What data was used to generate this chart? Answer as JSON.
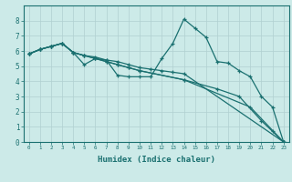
{
  "xlabel": "Humidex (Indice chaleur)",
  "ylabel": "",
  "background_color": "#cceae8",
  "line_color": "#1a7070",
  "grid_color": "#b0d0d0",
  "xlim": [
    -0.5,
    23.5
  ],
  "ylim": [
    0,
    9
  ],
  "xticks": [
    0,
    1,
    2,
    3,
    4,
    5,
    6,
    7,
    8,
    9,
    10,
    11,
    12,
    13,
    14,
    15,
    16,
    17,
    18,
    19,
    20,
    21,
    22,
    23
  ],
  "yticks": [
    0,
    1,
    2,
    3,
    4,
    5,
    6,
    7,
    8
  ],
  "lines": [
    {
      "x": [
        0,
        1,
        2,
        3,
        4,
        5,
        6,
        7,
        8,
        9,
        10,
        11,
        12,
        13,
        14,
        15,
        16,
        17,
        18,
        19,
        20,
        21,
        22,
        23
      ],
      "y": [
        5.8,
        6.1,
        6.3,
        6.5,
        5.9,
        5.1,
        5.5,
        5.4,
        4.4,
        4.3,
        4.3,
        4.3,
        5.5,
        6.5,
        8.1,
        7.5,
        6.9,
        5.3,
        5.2,
        4.7,
        4.3,
        3.0,
        2.3,
        0.0
      ]
    },
    {
      "x": [
        0,
        1,
        2,
        3,
        4,
        5,
        6,
        7,
        8,
        9,
        10,
        11,
        12,
        13,
        14,
        23
      ],
      "y": [
        5.8,
        6.1,
        6.3,
        6.5,
        5.9,
        5.7,
        5.6,
        5.4,
        5.3,
        5.1,
        4.9,
        4.8,
        4.7,
        4.6,
        4.5,
        0.0
      ]
    },
    {
      "x": [
        0,
        1,
        2,
        3,
        4,
        5,
        6,
        7,
        8,
        9,
        10,
        14,
        17,
        19,
        21,
        22,
        23
      ],
      "y": [
        5.8,
        6.1,
        6.3,
        6.5,
        5.9,
        5.7,
        5.5,
        5.3,
        5.1,
        4.9,
        4.7,
        4.1,
        3.5,
        3.0,
        1.4,
        0.7,
        0.0
      ]
    },
    {
      "x": [
        0,
        1,
        2,
        3,
        4,
        5,
        6,
        7,
        8,
        9,
        10,
        14,
        20,
        23
      ],
      "y": [
        5.8,
        6.1,
        6.3,
        6.5,
        5.9,
        5.7,
        5.5,
        5.3,
        5.1,
        4.9,
        4.7,
        4.1,
        2.3,
        0.0
      ]
    }
  ]
}
